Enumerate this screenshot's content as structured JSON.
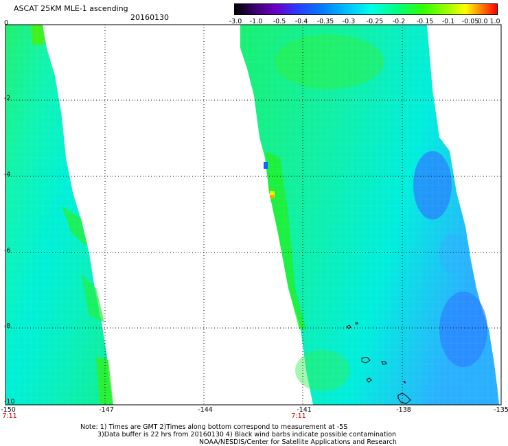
{
  "header": {
    "title": "ASCAT 25KM MLE-1 ascending",
    "date": "20160130"
  },
  "colorbar": {
    "labels": [
      "-3.0",
      "-1.0",
      "-0.5",
      "-0.4",
      "-0.35",
      "-0.3",
      "-0.25",
      "-0.2",
      "-0.15",
      "-0.1",
      "-0.05",
      "0.0",
      "1.0"
    ],
    "colors": [
      "#000000",
      "#3c0070",
      "#6a00c8",
      "#2a3cff",
      "#0080ff",
      "#00c8ff",
      "#00ffe6",
      "#00ff80",
      "#30ff00",
      "#a8ff00",
      "#ffff00",
      "#ff8000",
      "#ff0000"
    ]
  },
  "axes": {
    "x_ticks": [
      "-150",
      "-147",
      "-144",
      "-141",
      "-138",
      "-135"
    ],
    "y_ticks": [
      "0",
      "-2",
      "-4",
      "-6",
      "-8",
      "-10"
    ],
    "time_labels": [
      "7:11",
      "7:11"
    ]
  },
  "notes": {
    "line1": "Note: 1) Times are GMT 2)Times along bottom correspond to measurement at -5S",
    "line2": "3)Data buffer is 22 hrs from 20160130 4) Black wind barbs indicate possible contamination",
    "line3": "NOAA/NESDIS/Center for Satellite Applications and Research"
  },
  "swaths": [
    {
      "name": "west-swath",
      "lon_range": [
        -150,
        -146.8
      ]
    },
    {
      "name": "east-swath",
      "lon_range": [
        -142.4,
        -135
      ]
    }
  ]
}
